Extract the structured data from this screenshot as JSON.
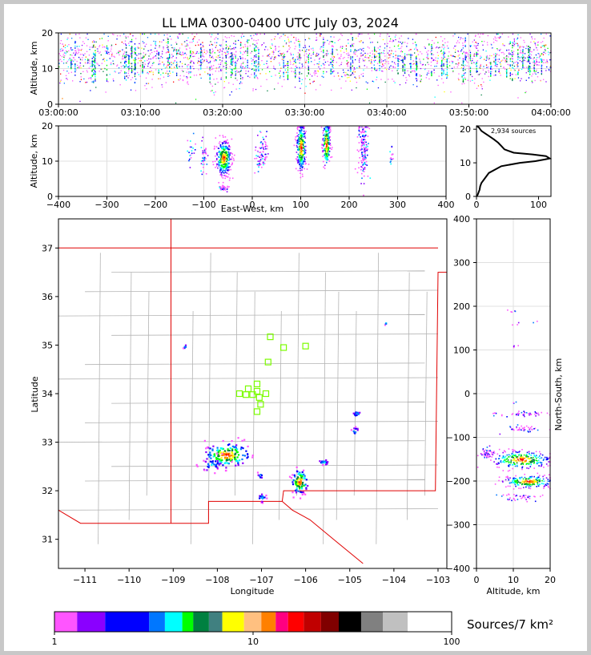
{
  "title": "LL LMA 0300-0400 UTC July 03, 2024",
  "colors": {
    "frame": "#c8c8c8",
    "state_border": "#e00000",
    "county_border": "#b4b4b4",
    "station_marker": "#7cfc00"
  },
  "chart_data": [
    {
      "id": "time-altitude",
      "type": "scatter",
      "ylabel": "Altitude, km",
      "xlabel": "",
      "x_ticks": [
        "03:00:00",
        "03:10:00",
        "03:20:00",
        "03:30:00",
        "03:40:00",
        "03:50:00",
        "04:00:00"
      ],
      "xlim": [
        "03:00:00",
        "04:00:00"
      ],
      "ylim": [
        0,
        20
      ],
      "y_ticks": [
        0,
        10,
        20
      ],
      "grid": true
    },
    {
      "id": "ew-altitude",
      "type": "scatter",
      "xlabel": "East-West, km",
      "ylabel": "Altitude, km",
      "xlim": [
        -400,
        400
      ],
      "x_ticks": [
        -400,
        -300,
        -200,
        -100,
        0,
        100,
        200,
        300,
        400
      ],
      "ylim": [
        0,
        20
      ],
      "y_ticks": [
        0,
        10,
        20
      ],
      "grid": true
    },
    {
      "id": "altitude-histogram",
      "type": "line",
      "annotation": "2,934 sources",
      "xlim": [
        0,
        120
      ],
      "x_ticks": [
        0,
        100
      ],
      "ylim": [
        0,
        21
      ],
      "y_ticks": [
        0,
        10,
        20
      ],
      "x": [
        0,
        2,
        3,
        4,
        5,
        6,
        8,
        12,
        20,
        40,
        70,
        95,
        110,
        118,
        112,
        90,
        60,
        45,
        40,
        35,
        28,
        20,
        12,
        8,
        6,
        4,
        0
      ],
      "y": [
        0,
        0.5,
        1,
        1.5,
        2,
        3,
        4,
        5,
        7,
        9,
        10,
        10.5,
        11,
        11.3,
        12,
        12.5,
        13,
        14,
        15,
        16,
        17,
        18,
        19,
        19.5,
        20,
        20.5,
        21
      ]
    },
    {
      "id": "plan-view",
      "type": "scatter",
      "xlabel": "Longitude",
      "ylabel": "Latitude",
      "xlim": [
        -111.6,
        -102.8
      ],
      "ylim": [
        30.4,
        37.6
      ],
      "x_ticks": [
        -111,
        -110,
        -109,
        -108,
        -107,
        -106,
        -105,
        -104,
        -103
      ],
      "y_ticks": [
        31,
        32,
        33,
        34,
        35,
        36,
        37
      ],
      "stations": [
        {
          "lon": -107.1,
          "lat": 34.2
        },
        {
          "lon": -107.1,
          "lat": 34.05
        },
        {
          "lon": -107.3,
          "lat": 34.1
        },
        {
          "lon": -107.35,
          "lat": 33.98
        },
        {
          "lon": -107.2,
          "lat": 33.98
        },
        {
          "lon": -107.05,
          "lat": 33.92
        },
        {
          "lon": -106.9,
          "lat": 34.0
        },
        {
          "lon": -107.02,
          "lat": 33.78
        },
        {
          "lon": -107.1,
          "lat": 33.63
        },
        {
          "lon": -106.85,
          "lat": 34.65
        },
        {
          "lon": -106.5,
          "lat": 34.95
        },
        {
          "lon": -106.0,
          "lat": 34.98
        },
        {
          "lon": -106.8,
          "lat": 35.17
        },
        {
          "lon": -107.5,
          "lat": 34.0
        }
      ],
      "clusters": [
        {
          "lon": -107.8,
          "lat": 32.75,
          "sx": 0.25,
          "sy": 0.12,
          "n": 170
        },
        {
          "lon": -108.15,
          "lat": 32.55,
          "sx": 0.12,
          "sy": 0.08,
          "n": 30
        },
        {
          "lon": -106.15,
          "lat": 32.2,
          "sx": 0.09,
          "sy": 0.12,
          "n": 90
        },
        {
          "lon": -107.0,
          "lat": 31.87,
          "sx": 0.05,
          "sy": 0.05,
          "n": 20
        },
        {
          "lon": -107.05,
          "lat": 32.33,
          "sx": 0.03,
          "sy": 0.04,
          "n": 8
        },
        {
          "lon": -105.6,
          "lat": 32.6,
          "sx": 0.06,
          "sy": 0.03,
          "n": 16
        },
        {
          "lon": -104.85,
          "lat": 33.6,
          "sx": 0.05,
          "sy": 0.03,
          "n": 12
        },
        {
          "lon": -104.9,
          "lat": 33.25,
          "sx": 0.04,
          "sy": 0.04,
          "n": 10
        },
        {
          "lon": -108.75,
          "lat": 34.98,
          "sx": 0.02,
          "sy": 0.02,
          "n": 5
        },
        {
          "lon": -104.2,
          "lat": 35.47,
          "sx": 0.02,
          "sy": 0.02,
          "n": 4
        }
      ]
    },
    {
      "id": "altitude-northsouth",
      "type": "scatter",
      "xlabel": "Altitude, km",
      "ylabel": "North-South, km",
      "xlim": [
        0,
        20
      ],
      "x_ticks": [
        0,
        10,
        20
      ],
      "ylim": [
        -400,
        400
      ],
      "y_ticks": [
        -400,
        -300,
        -200,
        -100,
        0,
        100,
        200,
        300,
        400
      ],
      "grid": true
    }
  ],
  "colorbar": {
    "label": "Sources/7 km²",
    "ticks": [
      "1",
      "10",
      "100"
    ],
    "colors": [
      "#ff55ff",
      "#8a00ff",
      "#0000ff",
      "#0077ff",
      "#00ffff",
      "#00ff00",
      "#008040",
      "#408080",
      "#ffff00",
      "#ffc080",
      "#ff8000",
      "#ff0080",
      "#ff0000",
      "#c00000",
      "#800000",
      "#000000",
      "#808080",
      "#c0c0c0",
      "#ffffff"
    ]
  }
}
